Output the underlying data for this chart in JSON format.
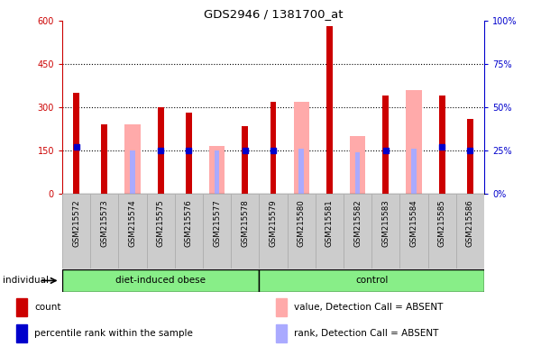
{
  "title": "GDS2946 / 1381700_at",
  "samples": [
    "GSM215572",
    "GSM215573",
    "GSM215574",
    "GSM215575",
    "GSM215576",
    "GSM215577",
    "GSM215578",
    "GSM215579",
    "GSM215580",
    "GSM215581",
    "GSM215582",
    "GSM215583",
    "GSM215584",
    "GSM215585",
    "GSM215586"
  ],
  "group_labels": [
    "diet-induced obese",
    "control"
  ],
  "group_ranges": [
    [
      0,
      6
    ],
    [
      7,
      14
    ]
  ],
  "count_values": [
    350,
    240,
    null,
    300,
    280,
    null,
    235,
    320,
    null,
    580,
    null,
    340,
    null,
    340,
    260
  ],
  "absent_value_values": [
    null,
    null,
    240,
    null,
    null,
    165,
    null,
    null,
    320,
    null,
    200,
    null,
    360,
    null,
    null
  ],
  "percentile_rank": [
    27,
    null,
    null,
    25,
    25,
    null,
    25,
    25,
    null,
    null,
    null,
    25,
    null,
    27,
    25
  ],
  "absent_rank_values": [
    null,
    null,
    25,
    null,
    null,
    25,
    null,
    null,
    26,
    null,
    24,
    null,
    26,
    null,
    null
  ],
  "ylim_left": [
    0,
    600
  ],
  "ylim_right": [
    0,
    100
  ],
  "yticks_left": [
    0,
    150,
    300,
    450,
    600
  ],
  "yticks_right": [
    0,
    25,
    50,
    75,
    100
  ],
  "ytick_labels_left": [
    "0",
    "150",
    "300",
    "450",
    "600"
  ],
  "ytick_labels_right": [
    "0%",
    "25%",
    "50%",
    "75%",
    "100%"
  ],
  "left_axis_color": "#cc0000",
  "right_axis_color": "#0000cc",
  "count_color": "#cc0000",
  "absent_value_color": "#ffaaaa",
  "percentile_color": "#0000cc",
  "absent_rank_color": "#aaaaff",
  "grid_color": "#000000",
  "bg_color": "#cccccc",
  "plot_bg": "#ffffff",
  "group_bg": "#88ee88",
  "legend_items": [
    "count",
    "percentile rank within the sample",
    "value, Detection Call = ABSENT",
    "rank, Detection Call = ABSENT"
  ],
  "legend_colors": [
    "#cc0000",
    "#0000cc",
    "#ffaaaa",
    "#aaaaff"
  ]
}
